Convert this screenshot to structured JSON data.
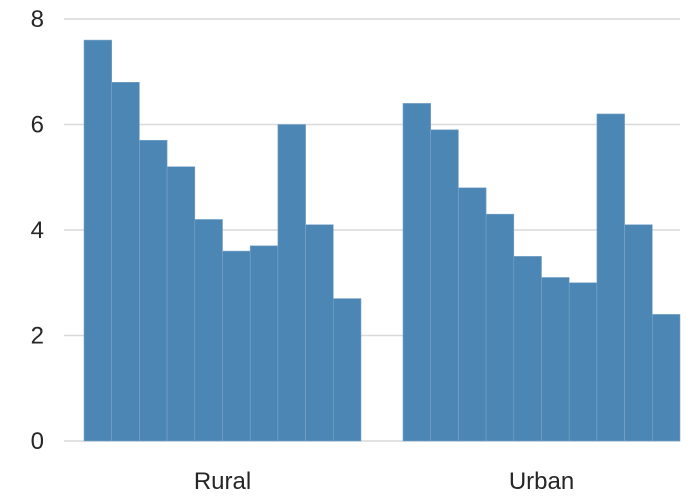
{
  "chart_data": {
    "type": "bar",
    "categories": [
      "Rural",
      "Urban"
    ],
    "series_per_category": [
      {
        "category": "Rural",
        "values": [
          7.6,
          6.8,
          5.7,
          5.2,
          4.2,
          3.6,
          3.7,
          6.0,
          4.1,
          2.7
        ]
      },
      {
        "category": "Urban",
        "values": [
          6.4,
          5.9,
          4.8,
          4.3,
          3.5,
          3.1,
          3.0,
          6.2,
          4.1,
          2.4
        ]
      }
    ],
    "y_ticks": [
      "0",
      "2",
      "4",
      "6",
      "8"
    ],
    "ylim": [
      0,
      8
    ],
    "grid": true,
    "bar_color": "#4b86b4",
    "title": "",
    "xlabel": "",
    "ylabel": ""
  }
}
